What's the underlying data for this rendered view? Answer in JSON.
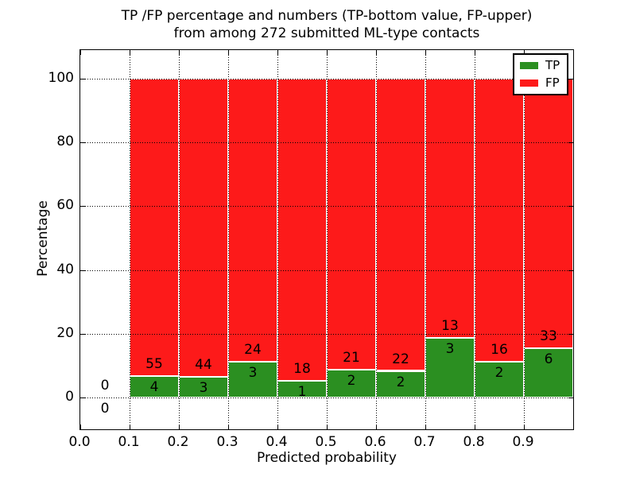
{
  "figure": {
    "title_line1": "TP /FP percentage and numbers (TP-bottom value, FP-upper)",
    "title_line2": "from among 272 submitted ML-type contacts"
  },
  "chart_data": {
    "type": "bar",
    "stacked": true,
    "normalized_to_percent": true,
    "title": "TP /FP percentage and numbers (TP-bottom value, FP-upper) from among 272 submitted ML-type contacts",
    "xlabel": "Predicted probability",
    "ylabel": "Percentage",
    "xlim": [
      0.0,
      1.0
    ],
    "ylim": [
      -10,
      109
    ],
    "xticks": [
      "0.0",
      "0.1",
      "0.2",
      "0.3",
      "0.4",
      "0.5",
      "0.6",
      "0.7",
      "0.8",
      "0.9"
    ],
    "yticks": [
      0,
      20,
      40,
      60,
      80,
      100
    ],
    "grid": "dotted",
    "legend_position": "upper right",
    "bin_edges": [
      0.0,
      0.1,
      0.2,
      0.3,
      0.4,
      0.5,
      0.6,
      0.7,
      0.8,
      0.9,
      1.0
    ],
    "series": [
      {
        "name": "TP",
        "color": "#2b8f21",
        "counts": [
          0,
          4,
          3,
          3,
          1,
          2,
          2,
          3,
          2,
          6
        ]
      },
      {
        "name": "FP",
        "color": "#fd1a1a",
        "counts": [
          0,
          55,
          44,
          24,
          18,
          21,
          22,
          13,
          16,
          33
        ]
      }
    ],
    "tp_percent_per_bin": [
      null,
      6.78,
      6.38,
      11.11,
      5.26,
      8.7,
      8.33,
      18.75,
      11.11,
      15.38
    ],
    "total_submitted": "272"
  }
}
